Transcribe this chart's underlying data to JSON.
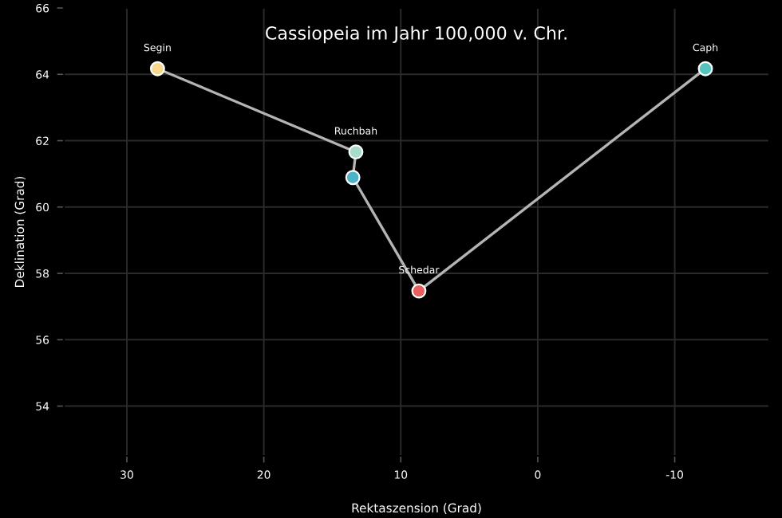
{
  "chart_data": {
    "type": "line",
    "title": "Cassiopeia im Jahr 100,000 v. Chr.",
    "xlabel": "Rektaszension (Grad)",
    "ylabel": "Deklination (Grad)",
    "x": [
      27.76,
      13.28,
      13.5,
      8.68,
      -12.24
    ],
    "series": [
      {
        "color": "#b4b4b4",
        "colors": [
          "#f5d88c",
          "#a6dccb",
          "#4fb3c8",
          "#e8605e",
          "#54c4bf"
        ],
        "values": [
          64.17,
          61.66,
          60.89,
          57.47,
          64.17
        ],
        "value_labels": [
          "Segin",
          "Ruchbah",
          null,
          "Schedar",
          "Caph"
        ]
      }
    ],
    "xlim": [
      34.6,
      -16.9
    ],
    "ylim": [
      52.5,
      66
    ],
    "xticks": [
      30,
      20,
      10,
      0,
      -10
    ],
    "yticks": [
      54,
      56,
      58,
      60,
      62,
      64,
      66
    ],
    "grid": true,
    "marker": "circle",
    "line_style": "solid"
  }
}
